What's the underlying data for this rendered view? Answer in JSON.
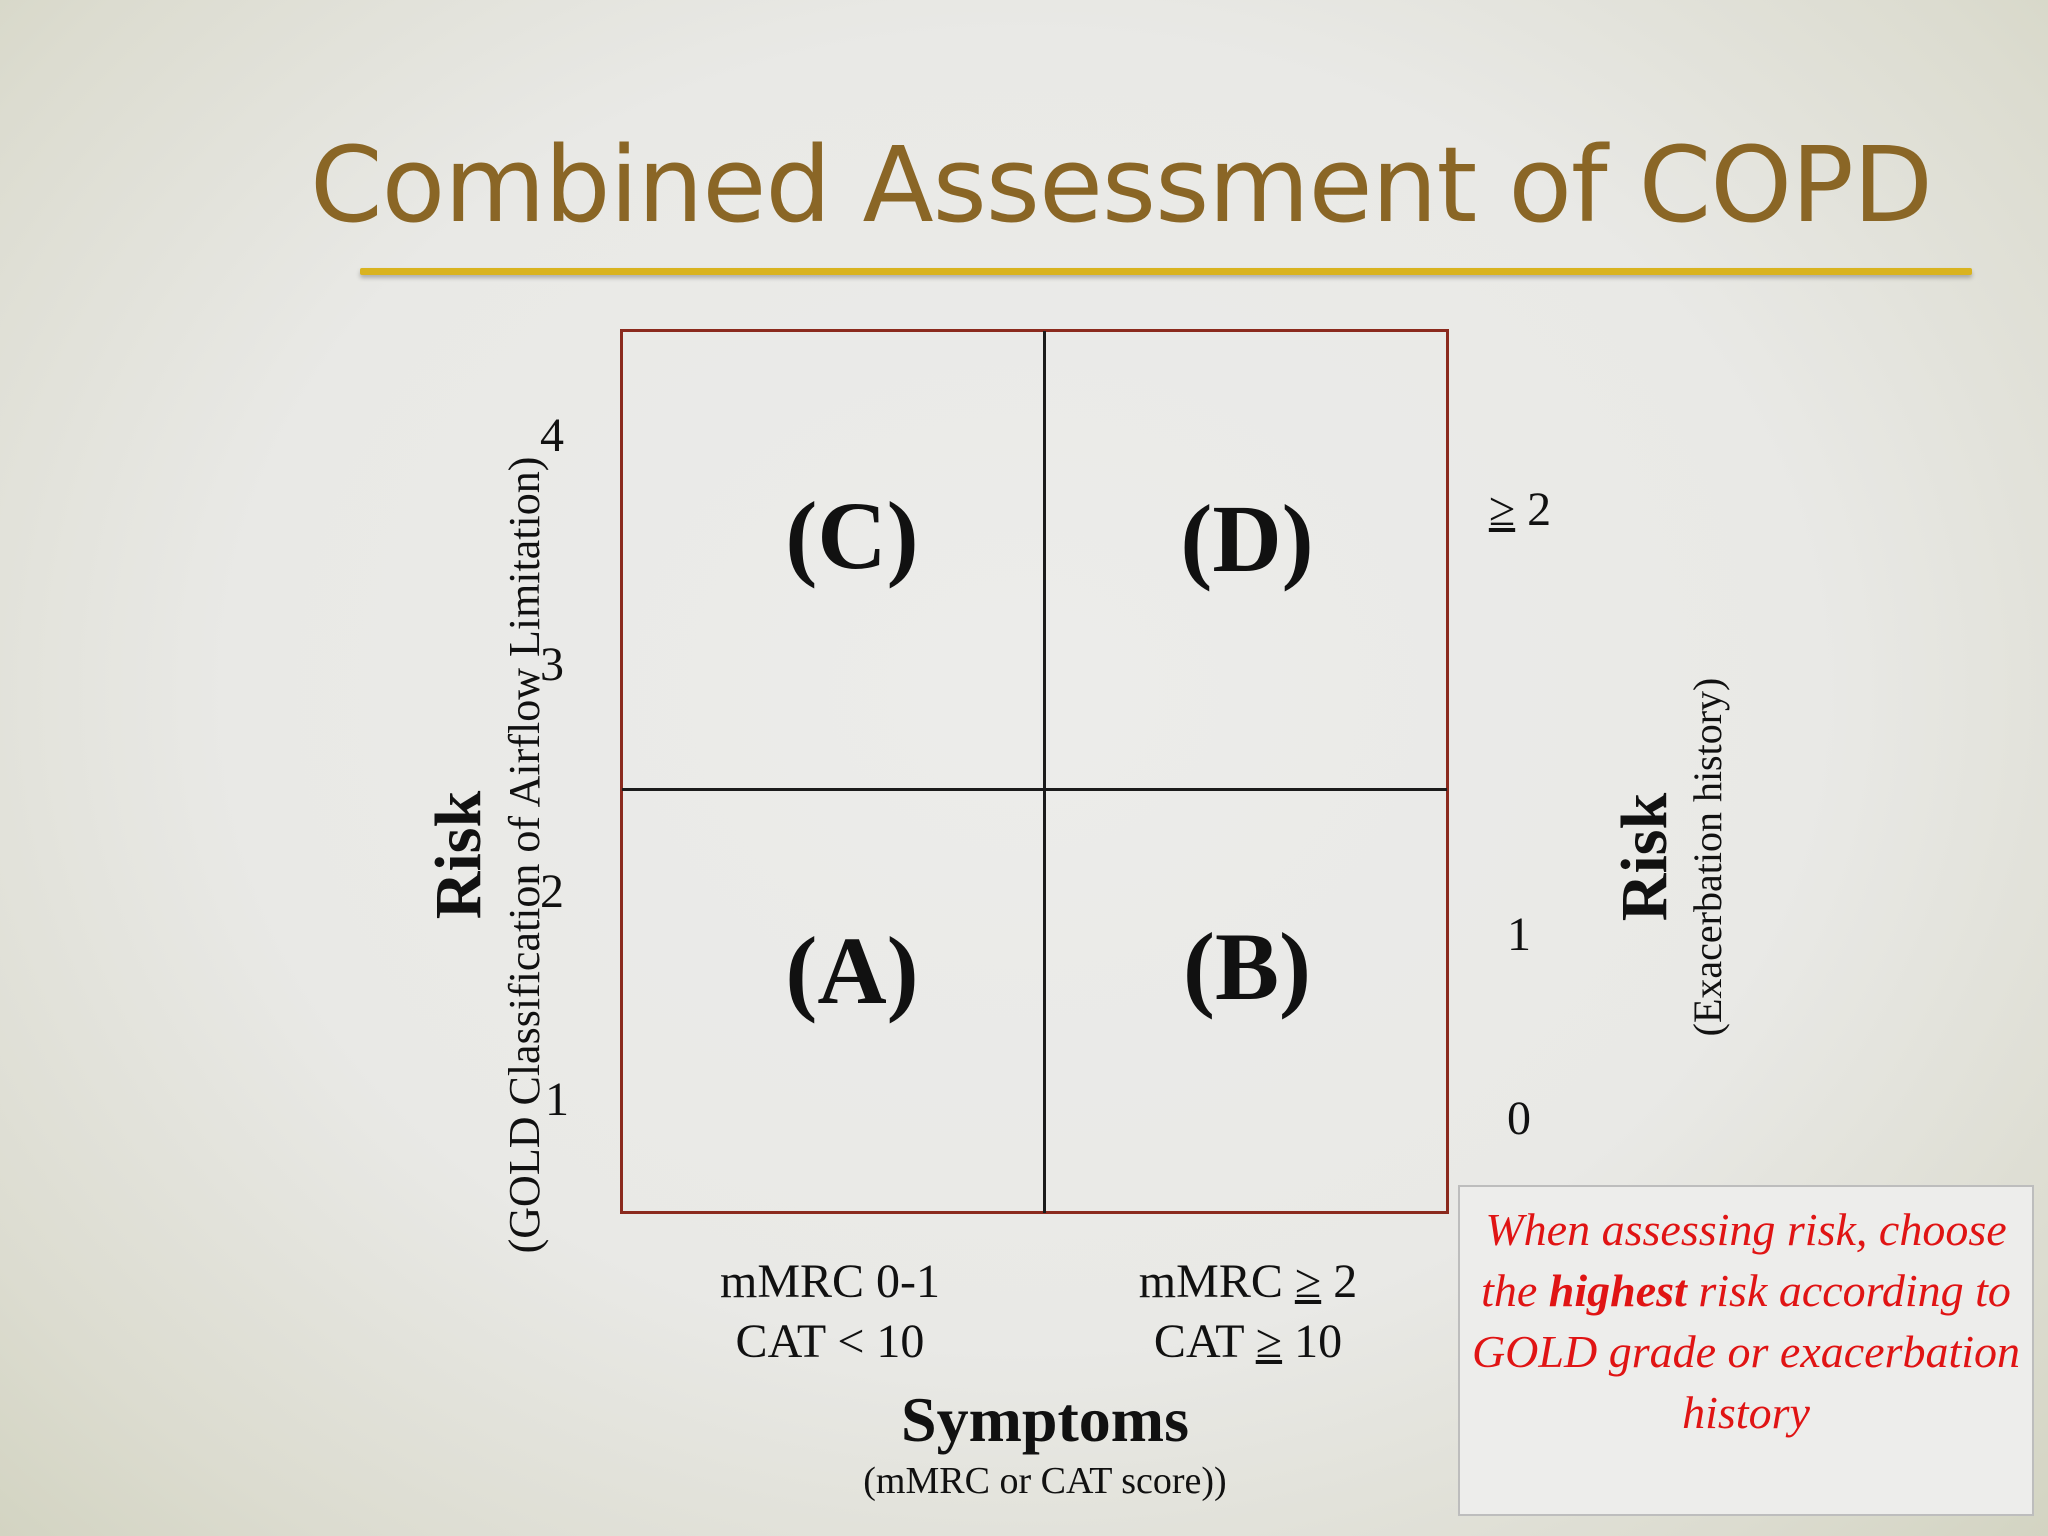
{
  "slide": {
    "title": "Combined Assessment of COPD"
  },
  "quadrants": {
    "c": "(C)",
    "d": "(D)",
    "a": "(A)",
    "b": "(B)"
  },
  "left_axis": {
    "title": "Risk",
    "subtitle": "(GOLD Classification of Airflow Limitation)",
    "ticks": [
      "4",
      "3",
      "2",
      "1"
    ]
  },
  "right_axis": {
    "title": "Risk",
    "subtitle": "(Exacerbation history)",
    "tick_high_symbol": "≥",
    "tick_high_value": " 2",
    "tick_mid": "1",
    "tick_low": "0"
  },
  "bottom_axis": {
    "col1_line1": "mMRC 0-1",
    "col1_line2": "CAT < 10",
    "col2_line1_prefix": "mMRC ",
    "col2_line1_symbol": "≥",
    "col2_line1_value": " 2",
    "col2_line2_prefix": "CAT ",
    "col2_line2_symbol": "≥",
    "col2_line2_value": " 10",
    "title": "Symptoms",
    "subtitle": "(mMRC or CAT score))"
  },
  "note": {
    "part1": "When assessing risk, choose the ",
    "emphasis": "highest",
    "part2": " risk according to GOLD grade or exacerbation history"
  }
}
